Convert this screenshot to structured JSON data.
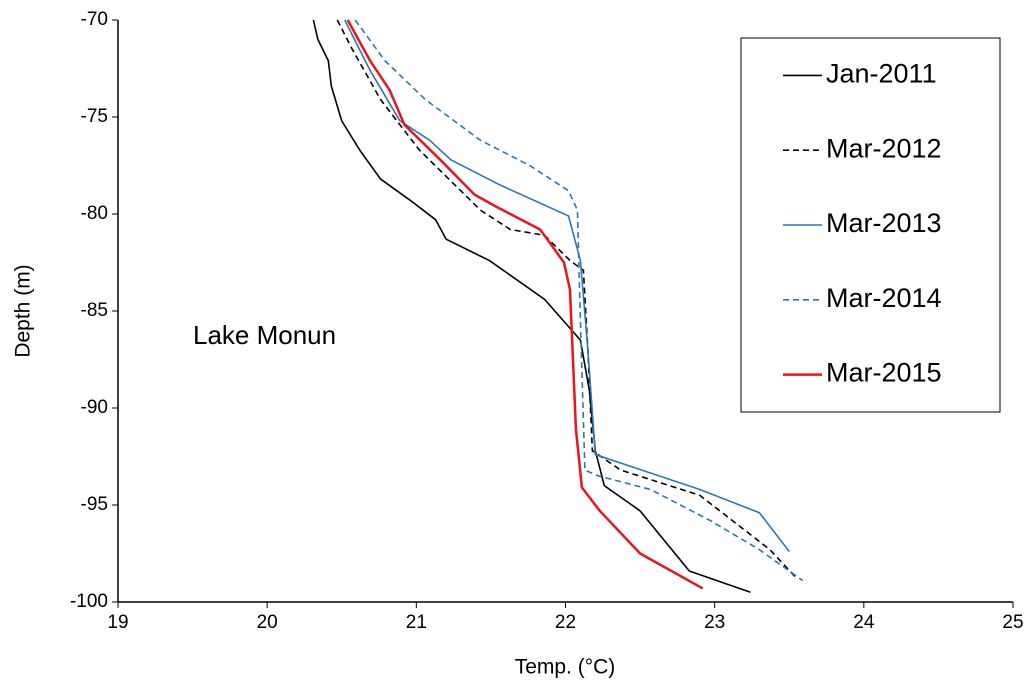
{
  "chart_data": {
    "type": "line",
    "annotation": "Lake Monun",
    "x_label": "Temp. (°C)",
    "y_label": "Depth (m)",
    "xlim": [
      19,
      25
    ],
    "xticks": [
      19,
      20,
      21,
      22,
      23,
      24,
      25
    ],
    "ylim": [
      -100,
      -70
    ],
    "yticks": [
      -70,
      -75,
      -80,
      -85,
      -90,
      -95,
      -100
    ],
    "legend": "upper right",
    "series": [
      {
        "name": "Jan-2011",
        "color": "#000000",
        "dash": false,
        "x": [
          20.31,
          20.34,
          20.41,
          20.43,
          20.5,
          20.62,
          20.76,
          20.96,
          21.13,
          21.2,
          21.49,
          21.86,
          22.1,
          22.16,
          22.2,
          22.26,
          22.5,
          22.83,
          23.24
        ],
        "values": [
          -70,
          -71,
          -72.1,
          -73.4,
          -75.2,
          -76.7,
          -78.2,
          -79.3,
          -80.3,
          -81.3,
          -82.4,
          -84.4,
          -86.5,
          -89.1,
          -92.2,
          -94,
          -95.3,
          -98.4,
          -99.5
        ]
      },
      {
        "name": "Mar-2012",
        "color": "#000000",
        "dash": true,
        "x": [
          20.47,
          20.57,
          20.76,
          21.02,
          21.43,
          21.63,
          21.86,
          22.03,
          22.12,
          22.15,
          22.18,
          22.37,
          22.9,
          23.37,
          23.54
        ],
        "values": [
          -70,
          -71.5,
          -74.1,
          -76.7,
          -79.8,
          -80.8,
          -81.1,
          -82.4,
          -82.9,
          -87,
          -92.2,
          -93.2,
          -94.5,
          -97.3,
          -98.7
        ]
      },
      {
        "name": "Mar-2013",
        "color": "#2e75b6",
        "dash": false,
        "x": [
          20.52,
          20.69,
          20.89,
          21.09,
          21.23,
          21.56,
          22.02,
          22.1,
          22.15,
          22.2,
          22.9,
          23.3,
          23.5
        ],
        "values": [
          -70,
          -72.6,
          -75.2,
          -76.2,
          -77.2,
          -78.5,
          -80.1,
          -82.4,
          -87,
          -92.4,
          -94.2,
          -95.4,
          -97.4
        ]
      },
      {
        "name": "Mar-2014",
        "color": "#2e75b6",
        "dash": true,
        "x": [
          20.59,
          20.79,
          21.06,
          21.43,
          21.76,
          22.02,
          22.08,
          22.1,
          22.13,
          22.22,
          22.57,
          22.97,
          23.3,
          23.59
        ],
        "values": [
          -70,
          -72.1,
          -74.1,
          -76.2,
          -77.5,
          -78.8,
          -79.8,
          -85.5,
          -93.2,
          -93.5,
          -94.2,
          -95.8,
          -97.3,
          -98.9
        ]
      },
      {
        "name": "Mar-2015",
        "color": "#e8161c",
        "dash": false,
        "x": [
          20.54,
          20.69,
          20.82,
          20.92,
          21.16,
          21.39,
          21.53,
          21.83,
          21.99,
          22.03,
          22.07,
          22.11,
          22.23,
          22.5,
          22.92
        ],
        "values": [
          -70,
          -72.1,
          -73.6,
          -75.4,
          -77.2,
          -79,
          -79.6,
          -80.8,
          -82.5,
          -83.9,
          -91.1,
          -94.1,
          -95.3,
          -97.5,
          -99.3
        ]
      }
    ]
  }
}
